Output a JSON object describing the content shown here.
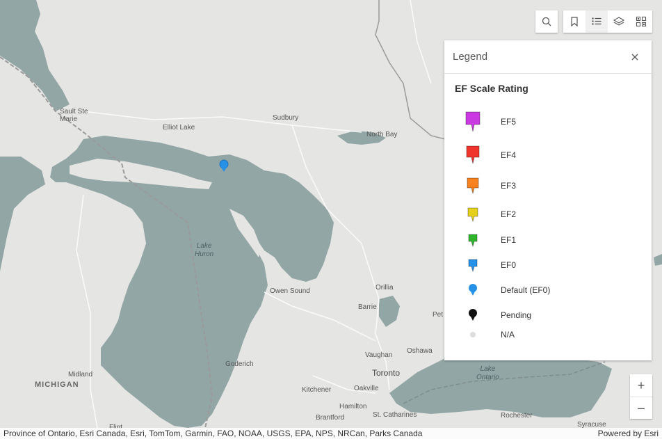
{
  "toolbar": {
    "search_icon": "search-icon",
    "bookmarks_icon": "bookmark-icon",
    "legend_icon": "legend-list-icon",
    "layers_icon": "layers-icon",
    "basemap_icon": "basemap-gallery-icon"
  },
  "legend": {
    "title": "Legend",
    "subtitle": "EF Scale Rating",
    "items": [
      {
        "label": "EF5",
        "color": "#c93ae0"
      },
      {
        "label": "EF4",
        "color": "#f0352c"
      },
      {
        "label": "EF3",
        "color": "#f7821f"
      },
      {
        "label": "EF2",
        "color": "#e8d11a"
      },
      {
        "label": "EF1",
        "color": "#2fb52d"
      },
      {
        "label": "EF0",
        "color": "#2791e8"
      },
      {
        "label": "Default (EF0)",
        "color": "#2791e8"
      },
      {
        "label": "Pending",
        "color": "#111111"
      },
      {
        "label": "N/A",
        "color": "#dddddd"
      }
    ]
  },
  "map": {
    "labels": {
      "sault_ste_marie": "Sault Ste\nMarie",
      "elliot_lake": "Elliot Lake",
      "sudbury": "Sudbury",
      "north_bay": "North Bay",
      "lake_huron": "Lake\nHuron",
      "owen_sound": "Owen Sound",
      "orillia": "Orillia",
      "barrie": "Barrie",
      "pet": "Pet",
      "oshawa": "Oshawa",
      "vaughan": "Vaughan",
      "toronto": "Toronto",
      "lake_ontario": "Lake\nOntario",
      "michigan": "MICHIGAN",
      "midland": "Midland",
      "goderich": "Goderich",
      "kitchener": "Kitchener",
      "oakville": "Oakville",
      "hamilton": "Hamilton",
      "brantford": "Brantford",
      "st_catharines": "St. Catharines",
      "rochester": "Rochester",
      "syracuse": "Syracuse",
      "flint": "Flint"
    },
    "marker_color": "#2791e8",
    "water_color": "#93a6a6",
    "land_color": "#e5e5e3"
  },
  "zoom": {
    "in": "+",
    "out": "–"
  },
  "attribution": {
    "sources": "Province of Ontario, Esri Canada, Esri, TomTom, Garmin, FAO, NOAA, USGS, EPA, NPS, NRCan, Parks Canada",
    "powered": "Powered by Esri"
  }
}
